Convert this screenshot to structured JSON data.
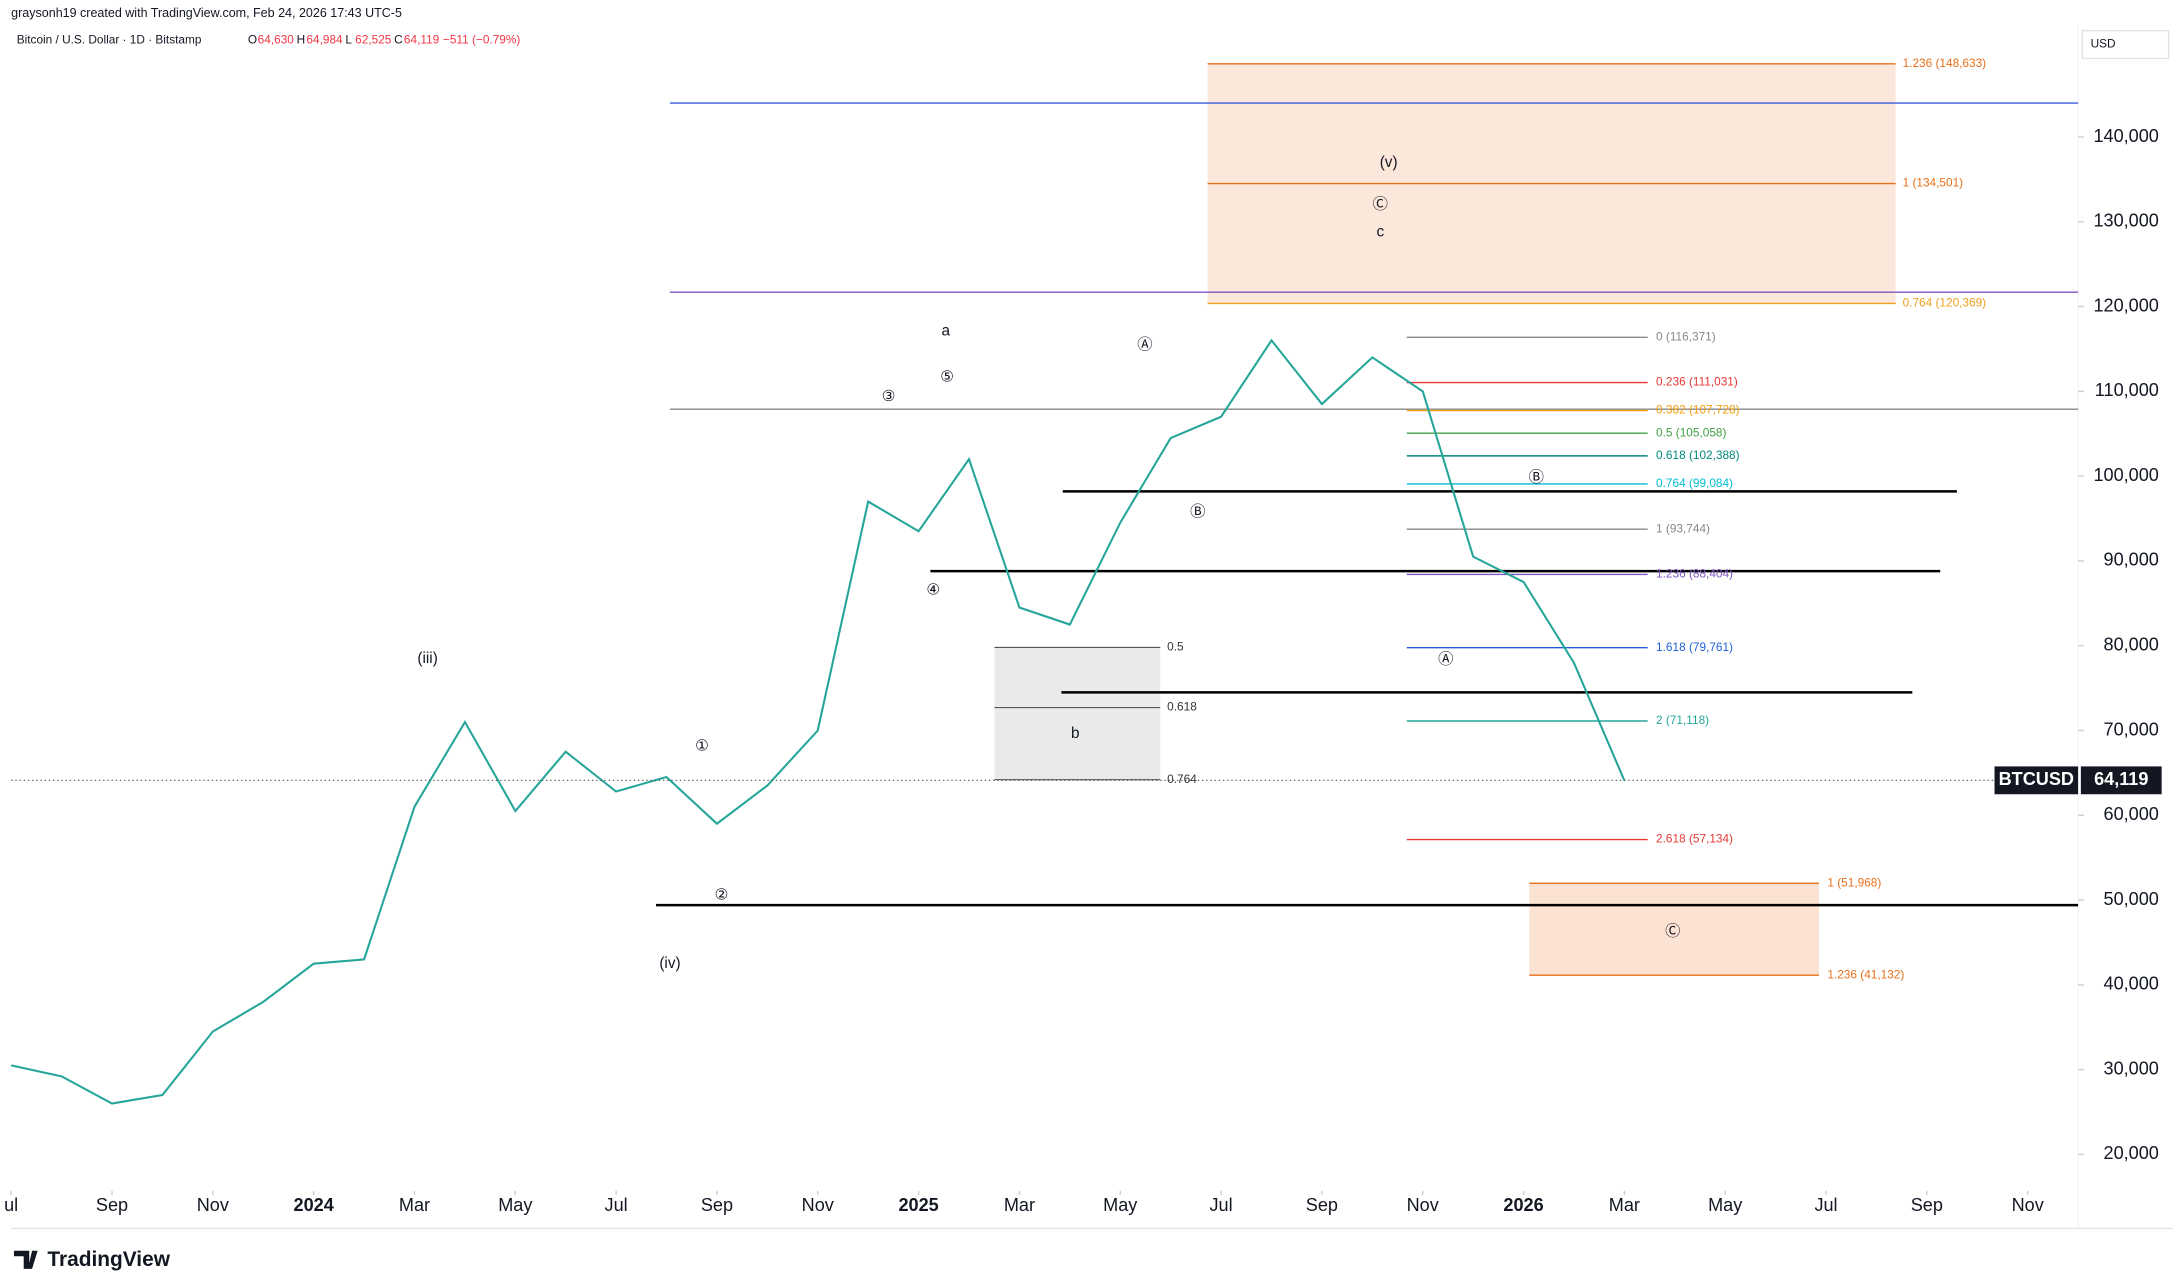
{
  "header": {
    "credit": "graysonh19 created with TradingView.com, Feb 24, 2026 17:43 UTC-5",
    "symbol": "Bitcoin / U.S. Dollar · 1D · Bitstamp",
    "ohlc": [
      {
        "key": "O",
        "value": "64,630"
      },
      {
        "key": "H",
        "value": "64,984"
      },
      {
        "key": "L",
        "value": "62,525"
      },
      {
        "key": "C",
        "value": "64,119"
      }
    ],
    "change": "−511 (−0.79%)",
    "currency": "USD"
  },
  "chart_data": {
    "type": "line",
    "series": [
      {
        "name": "BTCUSD",
        "color": "#26a69a",
        "x": [
          "2023-07",
          "2023-08",
          "2023-09",
          "2023-10",
          "2023-11",
          "2023-12",
          "2024-01",
          "2024-02",
          "2024-03",
          "2024-04",
          "2024-05",
          "2024-06",
          "2024-07",
          "2024-08",
          "2024-09",
          "2024-10",
          "2024-11",
          "2024-12",
          "2025-01",
          "2025-02",
          "2025-03",
          "2025-04",
          "2025-05",
          "2025-06",
          "2025-07",
          "2025-08",
          "2025-09",
          "2025-10",
          "2025-11",
          "2025-12",
          "2026-01",
          "2026-02",
          "2026-03"
        ],
        "values": [
          30500,
          29200,
          26000,
          27000,
          34500,
          38000,
          42500,
          43000,
          61000,
          71000,
          60500,
          67500,
          62800,
          64500,
          59000,
          63500,
          70000,
          97000,
          93500,
          102000,
          84500,
          82500,
          94500,
          104500,
          107000,
          116000,
          108500,
          114000,
          110000,
          90500,
          87500,
          78000,
          64119
        ]
      }
    ],
    "last_price": {
      "symbol": "BTCUSD",
      "value": 64119,
      "label": "64,119"
    },
    "xlim": [
      "2023-07",
      "2026-12"
    ],
    "xticks": [
      {
        "value": "2023-07",
        "label": "ul"
      },
      {
        "value": "2023-09",
        "label": "Sep"
      },
      {
        "value": "2023-11",
        "label": "Nov"
      },
      {
        "value": "2024-01",
        "label": "2024"
      },
      {
        "value": "2024-03",
        "label": "Mar"
      },
      {
        "value": "2024-05",
        "label": "May"
      },
      {
        "value": "2024-07",
        "label": "Jul"
      },
      {
        "value": "2024-09",
        "label": "Sep"
      },
      {
        "value": "2024-11",
        "label": "Nov"
      },
      {
        "value": "2025-01",
        "label": "2025"
      },
      {
        "value": "2025-03",
        "label": "Mar"
      },
      {
        "value": "2025-05",
        "label": "May"
      },
      {
        "value": "2025-07",
        "label": "Jul"
      },
      {
        "value": "2025-09",
        "label": "Sep"
      },
      {
        "value": "2025-11",
        "label": "Nov"
      },
      {
        "value": "2026-01",
        "label": "2026"
      },
      {
        "value": "2026-03",
        "label": "Mar"
      },
      {
        "value": "2026-05",
        "label": "May"
      },
      {
        "value": "2026-07",
        "label": "Jul"
      },
      {
        "value": "2026-09",
        "label": "Sep"
      },
      {
        "value": "2026-11",
        "label": "Nov"
      }
    ],
    "ylim": [
      15700,
      153200
    ],
    "yticks": [
      {
        "value": 20000,
        "label": "20,000"
      },
      {
        "value": 30000,
        "label": "30,000"
      },
      {
        "value": 40000,
        "label": "40,000"
      },
      {
        "value": 50000,
        "label": "50,000"
      },
      {
        "value": 60000,
        "label": "60,000"
      },
      {
        "value": 70000,
        "label": "70,000"
      },
      {
        "value": 80000,
        "label": "80,000"
      },
      {
        "value": 90000,
        "label": "90,000"
      },
      {
        "value": 100000,
        "label": "100,000"
      },
      {
        "value": 110000,
        "label": "110,000"
      },
      {
        "value": 120000,
        "label": "120,000"
      },
      {
        "value": 130000,
        "label": "130,000"
      },
      {
        "value": 140000,
        "label": "140,000"
      }
    ],
    "fib_top": [
      {
        "label": "1.236 (148,633)",
        "value": 148633,
        "color": "#e8701a"
      },
      {
        "label": "1 (134,501)",
        "value": 134501,
        "color": "#e8701a"
      },
      {
        "label": "0.764 (120,369)",
        "value": 120369,
        "color": "#f0a020"
      }
    ],
    "fib_mid": [
      {
        "label": "0 (116,371)",
        "value": 116371,
        "color": "#888888"
      },
      {
        "label": "0.236 (111,031)",
        "value": 111031,
        "color": "#e53935"
      },
      {
        "label": "0.382 (107,728)",
        "value": 107728,
        "color": "#f59e0b"
      },
      {
        "label": "0.5 (105,058)",
        "value": 105058,
        "color": "#43a047"
      },
      {
        "label": "0.618 (102,388)",
        "value": 102388,
        "color": "#00897b"
      },
      {
        "label": "0.764 (99,084)",
        "value": 99084,
        "color": "#00bcd4"
      },
      {
        "label": "1 (93,744)",
        "value": 93744,
        "color": "#888888"
      },
      {
        "label": "1.236 (88,404)",
        "value": 88404,
        "color": "#7e57c2"
      },
      {
        "label": "1.618 (79,761)",
        "value": 79761,
        "color": "#1e5fd6"
      },
      {
        "label": "2 (71,118)",
        "value": 71118,
        "color": "#26a69a"
      },
      {
        "label": "2.618 (57,134)",
        "value": 57134,
        "color": "#e53935"
      }
    ],
    "fib_low": [
      {
        "label": "1 (51,968)",
        "value": 51968,
        "color": "#e8701a"
      },
      {
        "label": "1.236 (41,132)",
        "value": 41132,
        "color": "#e8701a"
      }
    ],
    "retrace": [
      {
        "ratio": 0.5,
        "price": 79800
      },
      {
        "ratio": 0.618,
        "price": 72700
      },
      {
        "ratio": 0.764,
        "price": 64200
      }
    ],
    "levels": [
      {
        "value": 144000,
        "color": "#3b5bdb"
      },
      {
        "value": 121700,
        "color": "#7e57c2"
      },
      {
        "value": 107900,
        "color": "#888888"
      },
      {
        "value": 98200,
        "color": "#000000"
      },
      {
        "value": 88800,
        "color": "#000000"
      },
      {
        "value": 74500,
        "color": "#000000"
      },
      {
        "value": 49400,
        "color": "#000000"
      }
    ],
    "waves": [
      "(iii)",
      "(iv)",
      "(v)",
      "a",
      "b",
      "c",
      "①",
      "②",
      "③",
      "④",
      "⑤",
      "Ⓐ",
      "Ⓑ",
      "Ⓒ",
      "Ⓐ",
      "Ⓑ",
      "Ⓒ"
    ]
  },
  "footer": {
    "brand": "TradingView"
  }
}
